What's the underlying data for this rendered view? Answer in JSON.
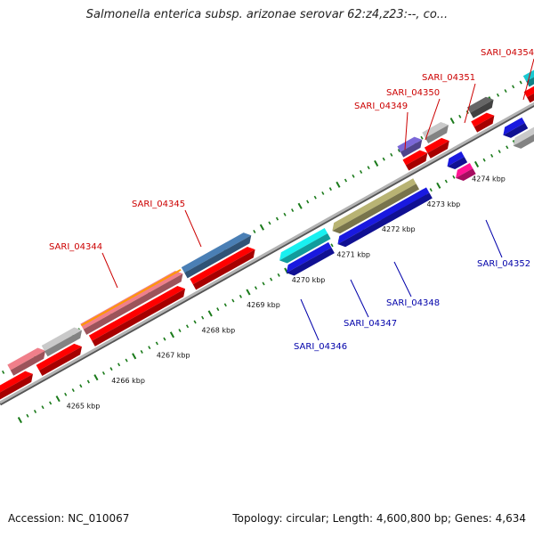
{
  "title": "Salmonella enterica subsp. arizonae serovar 62:z4,z23:--, co...",
  "footer": {
    "accession": "Accession: NC_010067",
    "summary": "Topology: circular; Length: 4,600,800 bp; Genes: 4,634"
  },
  "colors": {
    "forward_label": "#cc0000",
    "reverse_label": "#0000aa",
    "tick": "#1a7a1a",
    "backbone": "#888888",
    "cds_red": "#ff0000"
  },
  "scale_labels": [
    "4265 kbp",
    "4266 kbp",
    "4267 kbp",
    "4268 kbp",
    "4269 kbp",
    "4270 kbp",
    "4271 kbp",
    "4272 kbp",
    "4273 kbp",
    "4274 kbp"
  ],
  "forward_genes": [
    {
      "name": "SARI_04344",
      "color": "#f07f8a"
    },
    {
      "name": "SARI_04345",
      "color": "#4a7fb5"
    },
    {
      "name": "SARI_04349",
      "color": "#7b68d8"
    },
    {
      "name": "SARI_04350",
      "color": "#c9c9c9"
    },
    {
      "name": "SARI_04351",
      "color": "#666666"
    },
    {
      "name": "SARI_04354",
      "color": "#19c8d0"
    }
  ],
  "reverse_genes": [
    {
      "name": "SARI_04346",
      "color": "#19f0f0"
    },
    {
      "name": "SARI_04347",
      "color": "#b8b373"
    },
    {
      "name": "SARI_04348",
      "color": "#1919e0"
    },
    {
      "name": "SARI_04352",
      "color": "#ff1493"
    }
  ]
}
